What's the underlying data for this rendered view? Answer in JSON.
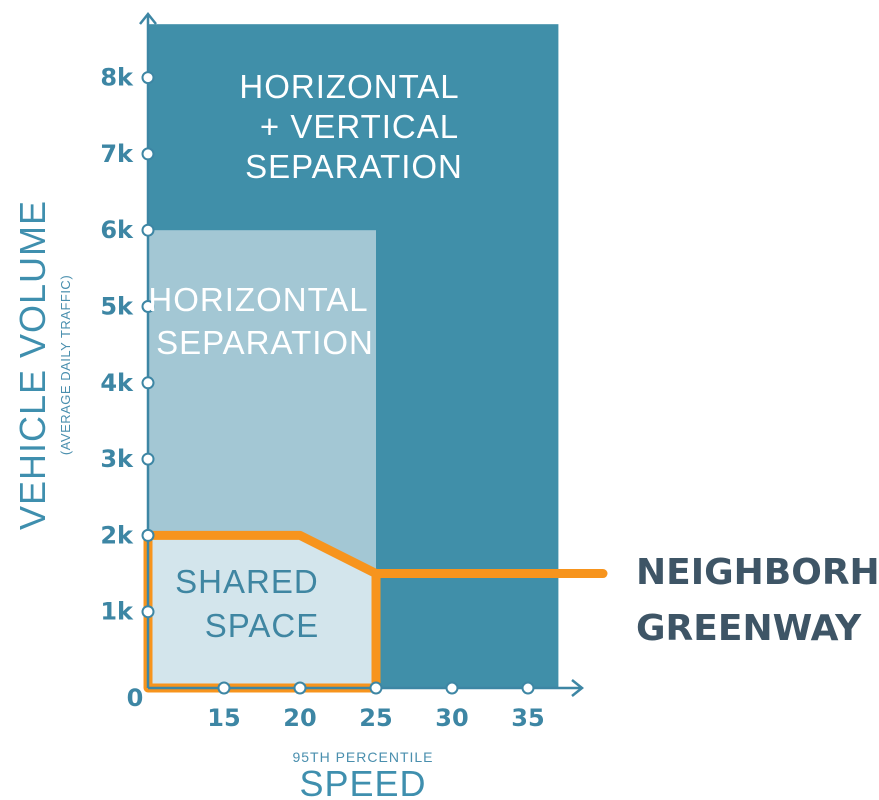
{
  "colors": {
    "dark_zone": "#408fa9",
    "light_zone": "#a3c7d4",
    "shared_zone": "#d3e5ec",
    "greenway_outline": "#f7941d",
    "axis": "#3d86a4",
    "callout_text": "#3e5566"
  },
  "axes": {
    "y_label": "VEHICLE VOLUME",
    "y_sublabel": "(AVERAGE DAILY TRAFFIC)",
    "x_sublabel": "95TH PERCENTILE",
    "x_label": "SPEED",
    "origin_label": "0",
    "y_ticks": [
      {
        "value": 1000,
        "label": "1k"
      },
      {
        "value": 2000,
        "label": "2k"
      },
      {
        "value": 3000,
        "label": "3k"
      },
      {
        "value": 4000,
        "label": "4k"
      },
      {
        "value": 5000,
        "label": "5k"
      },
      {
        "value": 6000,
        "label": "6k"
      },
      {
        "value": 7000,
        "label": "7k"
      },
      {
        "value": 8000,
        "label": "8k"
      }
    ],
    "x_ticks": [
      {
        "value": 15,
        "label": "15"
      },
      {
        "value": 20,
        "label": "20"
      },
      {
        "value": 25,
        "label": "25"
      },
      {
        "value": 30,
        "label": "30"
      },
      {
        "value": 35,
        "label": "35"
      }
    ]
  },
  "zones": {
    "horizontal_vertical": {
      "lines": [
        "HORIZONTAL",
        "+ VERTICAL",
        "SEPARATION"
      ],
      "x_max": 37,
      "y_max": 8700
    },
    "horizontal": {
      "lines": [
        "HORIZONTAL",
        "SEPARATION"
      ],
      "x_max": 25,
      "y_max": 6000
    },
    "shared_space": {
      "lines": [
        "SHARED",
        "SPACE"
      ],
      "x_max": 25,
      "y_max": 2000,
      "corner": {
        "x": 20,
        "y": 2000,
        "x2": 25,
        "y2": 1500
      }
    }
  },
  "callout": {
    "lines": [
      "NEIGHBORHOOD",
      "GREENWAY"
    ]
  }
}
